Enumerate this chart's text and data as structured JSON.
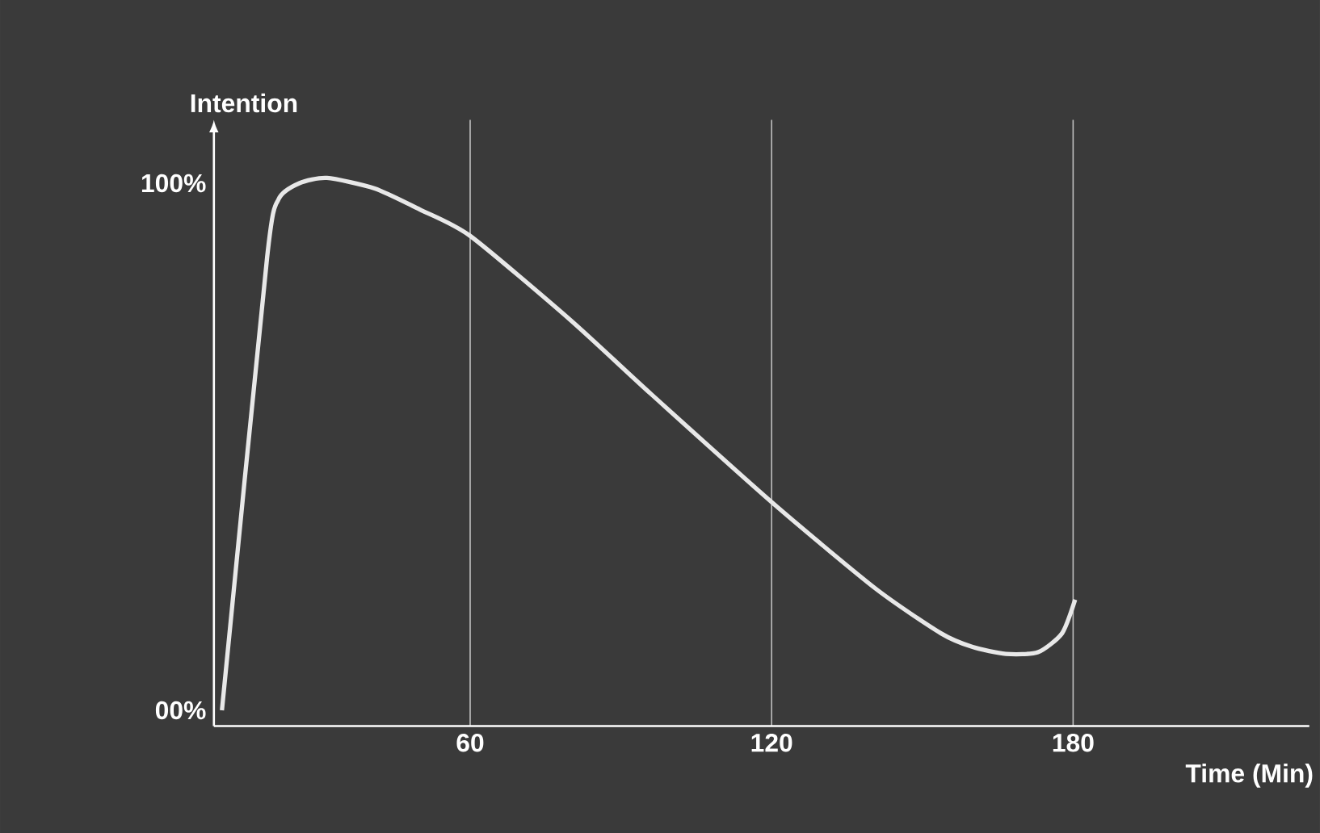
{
  "chart_data": {
    "type": "line",
    "xlabel": "Time (Min)",
    "ylabel": "Intention",
    "x": [
      10.6,
      19.6,
      21.9,
      26,
      31.5,
      41,
      50,
      60,
      80,
      96,
      120.6,
      140.8,
      153.7,
      160,
      166.6,
      173,
      177.8,
      180.4
    ],
    "values": [
      0,
      86,
      97,
      100,
      101,
      99,
      95,
      90,
      74,
      60,
      39,
      23,
      14.6,
      12,
      10.7,
      11,
      14.6,
      21
    ],
    "color": "#e8e8e8",
    "xlim": [
      9,
      227
    ],
    "ylim": [
      -3,
      112
    ],
    "xticks": [
      60,
      120,
      180
    ],
    "yticks": [
      {
        "value": 0,
        "label": "00%"
      },
      {
        "value": 100,
        "label": "100%"
      }
    ],
    "grid": "x"
  }
}
